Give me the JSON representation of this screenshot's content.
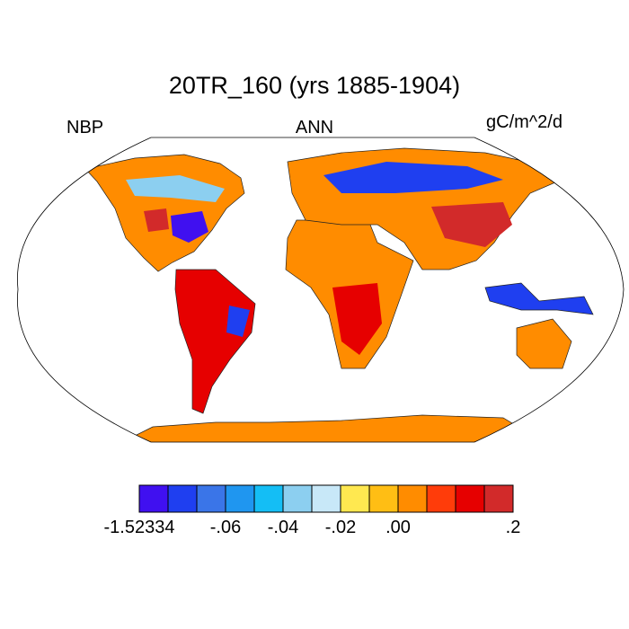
{
  "header": {
    "title": "20TR_160 (yrs 1885-1904)",
    "left_label": "NBP",
    "center_label": "ANN",
    "right_label": "gC/m^2/d"
  },
  "colorbar": {
    "colors": [
      "#4010f0",
      "#1f3ff0",
      "#3a75e8",
      "#1f96f0",
      "#14bef5",
      "#8ccff0",
      "#c8e8f8",
      "#ffe850",
      "#ffbe14",
      "#ff8c00",
      "#ff3c0a",
      "#e60000",
      "#d22a2a"
    ],
    "labels": [
      "-1.52334",
      "-.06",
      "-.04",
      "-.02",
      ".00",
      ".2"
    ]
  }
}
